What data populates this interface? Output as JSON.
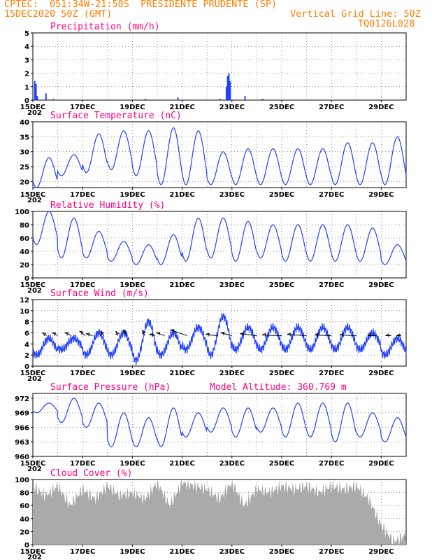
{
  "header": {
    "source": "CPTEC:",
    "coords": "051:34W-21:58S",
    "location": "PRESIDENTE PRUDENTE (SP)",
    "datetime": "15DEC2020 50Z (GMT)",
    "grid_note": "Vertical Grid Line: 50Z",
    "run_id": "TQ0126L028"
  },
  "x_axis": {
    "start_day": 15,
    "end_day": 30,
    "tick_labels": [
      "15DEC",
      "17DEC",
      "19DEC",
      "21DEC",
      "23DEC",
      "25DEC",
      "27DEC",
      "29DEC"
    ],
    "tick_days": [
      15,
      17,
      19,
      21,
      23,
      25,
      27,
      29
    ],
    "first_label_suffix": "202"
  },
  "colors": {
    "line": "#1f3fff",
    "cloud": "#aaaaaa",
    "title": "#ff0080",
    "header": "#ff7f00",
    "wind": "#000000"
  },
  "chart_data": [
    {
      "type": "bar",
      "title": "Precipitation (mm/h)",
      "ylim": [
        0,
        5
      ],
      "yticks": [
        0,
        1,
        2,
        3,
        4,
        5
      ],
      "series": [
        {
          "x_day": [
            15.05,
            15.1,
            15.15,
            15.5,
            15.8,
            19.5,
            20.8,
            22.5,
            22.75,
            22.8,
            22.85,
            22.9,
            23.5,
            24.2
          ],
          "values": [
            1.4,
            1.2,
            0.3,
            0.5,
            0.1,
            0.1,
            0.2,
            0.1,
            1.0,
            1.8,
            2.0,
            1.4,
            0.3,
            0.1
          ]
        }
      ]
    },
    {
      "type": "line",
      "title": "Surface Temperature (nC)",
      "ylim": [
        18,
        40
      ],
      "yticks": [
        20,
        25,
        30,
        35,
        40
      ],
      "series": [
        {
          "name": "temperature",
          "min": [
            18,
            22,
            23,
            24,
            22,
            19,
            19,
            19,
            19,
            19,
            19,
            19,
            19,
            19,
            19
          ],
          "max": [
            28,
            29,
            36,
            37,
            37,
            38,
            37,
            30,
            31,
            31,
            31,
            31,
            33,
            33,
            35
          ]
        }
      ]
    },
    {
      "type": "line",
      "title": "Relative Humidity (%)",
      "ylim": [
        0,
        100
      ],
      "yticks": [
        0,
        20,
        40,
        60,
        80,
        100
      ],
      "series": [
        {
          "name": "humidity",
          "min": [
            50,
            30,
            30,
            25,
            20,
            20,
            25,
            30,
            25,
            30,
            25,
            25,
            25,
            25,
            20
          ],
          "max": [
            100,
            90,
            70,
            55,
            50,
            65,
            90,
            90,
            85,
            80,
            80,
            80,
            80,
            75,
            50
          ]
        }
      ]
    },
    {
      "type": "line",
      "title": "Surface Wind (m/s)",
      "ylim": [
        0,
        12
      ],
      "yticks": [
        0,
        2,
        4,
        6,
        8,
        10,
        12
      ],
      "series": [
        {
          "name": "wind_speed",
          "min": [
            2,
            3,
            2,
            2,
            1,
            2,
            3,
            2,
            3,
            3,
            3,
            3,
            3,
            3,
            2
          ],
          "max": [
            5,
            5,
            6,
            6,
            8,
            6,
            7,
            9,
            7,
            7,
            7,
            7,
            7,
            6,
            5
          ]
        }
      ],
      "vectors": [
        {
          "day": 15.55,
          "u": 0.8,
          "v": 0.5
        },
        {
          "day": 16.0,
          "u": 1.0,
          "v": 0.5
        },
        {
          "day": 16.55,
          "u": 1.2,
          "v": 0.5
        },
        {
          "day": 17.1,
          "u": 1.0,
          "v": 0.8
        },
        {
          "day": 17.4,
          "u": 1.2,
          "v": 0.3
        },
        {
          "day": 17.85,
          "u": 0.6,
          "v": 0.8
        },
        {
          "day": 18.4,
          "u": 0.3,
          "v": 0.8
        },
        {
          "day": 18.8,
          "u": 0.8,
          "v": 1.0
        },
        {
          "day": 19.5,
          "u": 0.5,
          "v": 1.0
        },
        {
          "day": 19.9,
          "u": 1.0,
          "v": 0.2
        },
        {
          "day": 20.3,
          "u": 1.5,
          "v": 0.5
        },
        {
          "day": 21.2,
          "u": 3.0,
          "v": 1.0
        },
        {
          "day": 22.4,
          "u": 2.0,
          "v": 0.2
        },
        {
          "day": 23.0,
          "u": 2.0,
          "v": 0.5
        },
        {
          "day": 24.0,
          "u": 3.0,
          "v": 0.3
        },
        {
          "day": 25.0,
          "u": 3.5,
          "v": 0.1
        },
        {
          "day": 26.0,
          "u": 3.5,
          "v": 0.2
        },
        {
          "day": 27.0,
          "u": 3.0,
          "v": 0.1
        },
        {
          "day": 28.0,
          "u": 3.0,
          "v": 0.1
        },
        {
          "day": 28.8,
          "u": 1.5,
          "v": 0.0
        },
        {
          "day": 29.4,
          "u": 1.0,
          "v": 0.0
        },
        {
          "day": 29.8,
          "u": 0.8,
          "v": 0.0
        }
      ]
    },
    {
      "type": "line",
      "title": "Surface Pressure (hPa)",
      "annotation": "Model Altitude: 360.769 m",
      "ylim": [
        960,
        973
      ],
      "yticks": [
        960,
        963,
        966,
        969,
        972
      ],
      "series": [
        {
          "name": "pressure",
          "min": [
            969,
            967,
            966,
            962,
            962,
            962,
            964,
            965,
            964,
            965,
            964,
            964,
            963,
            964,
            963
          ],
          "max": [
            971,
            972,
            971,
            969,
            968,
            970,
            969,
            970,
            970,
            970,
            971,
            971,
            971,
            969,
            968
          ]
        }
      ]
    },
    {
      "type": "area",
      "title": "Cloud Cover (%)",
      "ylim": [
        0,
        100
      ],
      "yticks": [
        0,
        20,
        40,
        60,
        80,
        100
      ],
      "series": [
        {
          "name": "cloud_cover",
          "day": [
            15,
            15.5,
            16,
            16.5,
            17,
            17.5,
            18,
            18.5,
            19,
            19.5,
            20,
            20.5,
            21,
            21.5,
            22,
            22.5,
            23,
            23.5,
            24,
            24.5,
            25,
            25.5,
            26,
            26.5,
            27,
            27.5,
            28,
            28.5,
            29,
            29.5,
            30
          ],
          "values": [
            90,
            75,
            90,
            60,
            85,
            70,
            90,
            75,
            80,
            70,
            95,
            60,
            95,
            90,
            85,
            70,
            95,
            60,
            85,
            80,
            90,
            85,
            90,
            80,
            90,
            85,
            90,
            70,
            30,
            5,
            15
          ]
        }
      ]
    }
  ]
}
